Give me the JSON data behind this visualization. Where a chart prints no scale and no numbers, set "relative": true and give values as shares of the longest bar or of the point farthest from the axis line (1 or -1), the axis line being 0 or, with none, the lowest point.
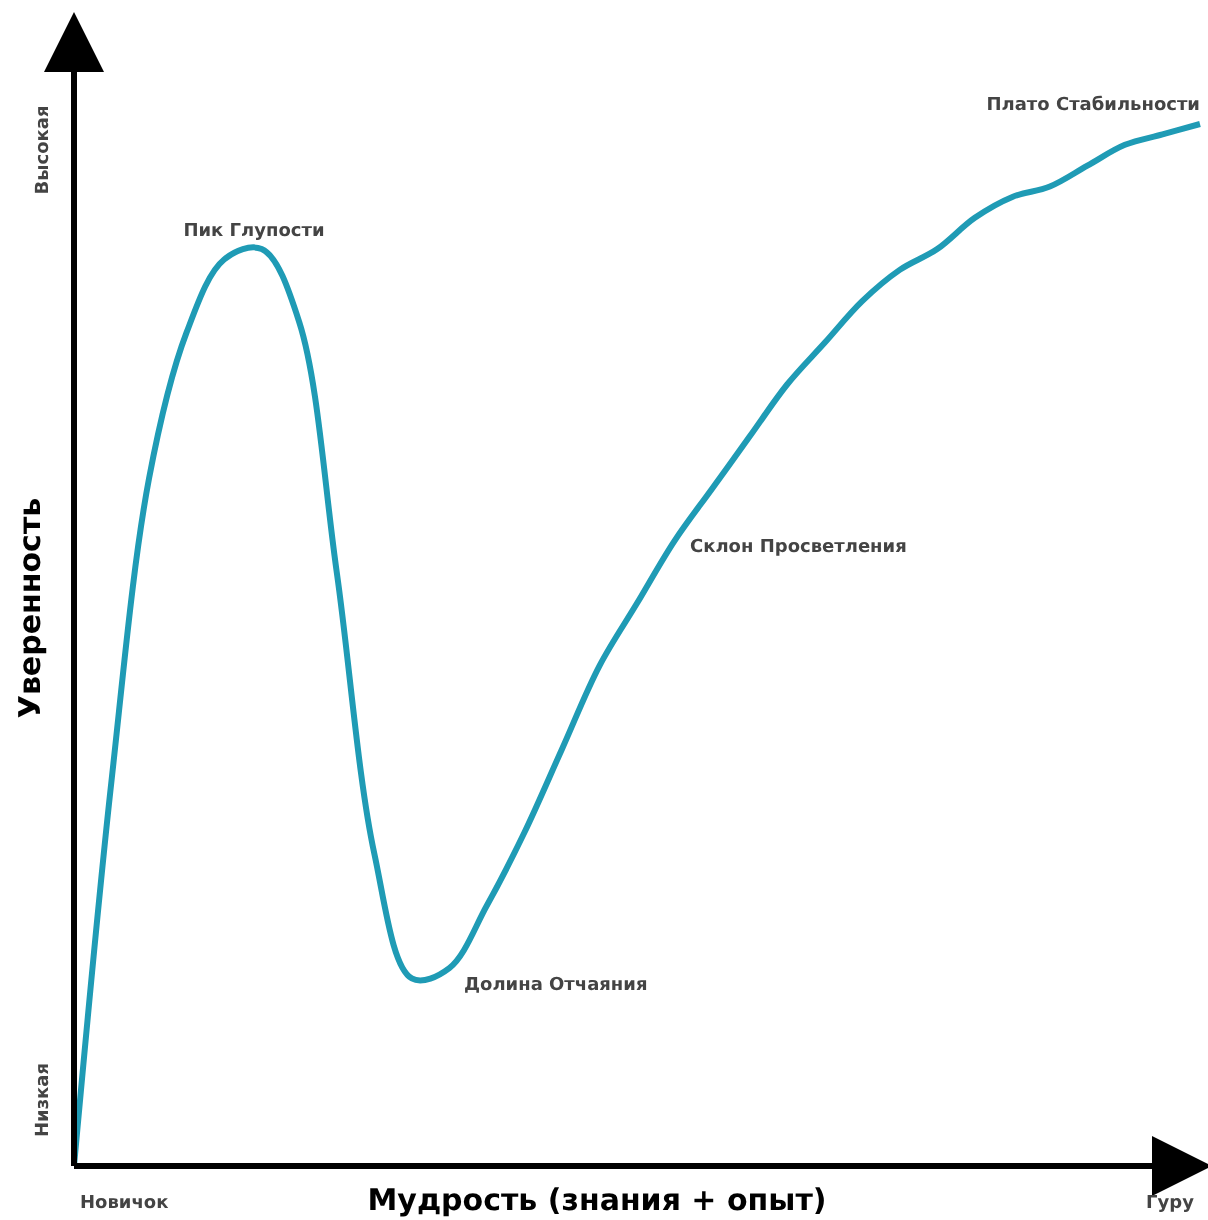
{
  "chart_data": {
    "type": "line",
    "relative": true,
    "xlabel": "Мудрость (знания + опыт)",
    "ylabel": "Уверенность",
    "categories": [
      null,
      null,
      null,
      null,
      null,
      null,
      null,
      null,
      null,
      null,
      null,
      null,
      null,
      null,
      null,
      null,
      null,
      null,
      null,
      null,
      null,
      null,
      null,
      null,
      null,
      null,
      null,
      null,
      null,
      null,
      null
    ],
    "series": [
      {
        "color": "#1f9bb5",
        "values": [
          0,
          0.37,
          0.66,
          0.8,
          0.87,
          0.88,
          0.81,
          0.57,
          0.3,
          0.18,
          0.19,
          0.25,
          0.32,
          0.4,
          0.48,
          0.54,
          0.6,
          0.65,
          0.7,
          0.75,
          0.79,
          0.83,
          0.86,
          0.88,
          0.91,
          0.93,
          0.94,
          0.96,
          0.98,
          0.99,
          1
        ]
      }
    ],
    "marker": "none",
    "line_style": "solid",
    "annotations": [
      "Высокая",
      "Низкая",
      "Новичок",
      "Гуру",
      "Пик Глупости",
      "Долина Отчаяния",
      "Склон Просветления",
      "Плато Стабильности"
    ]
  }
}
